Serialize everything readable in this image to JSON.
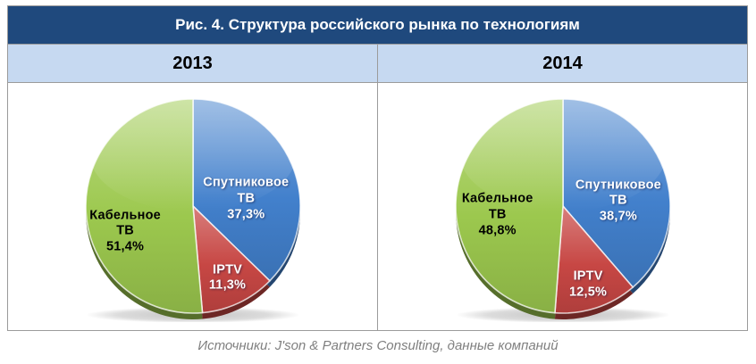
{
  "title": "Рис. 4. Структура российского рынка по технологиям",
  "source": "Источники: J'son & Partners Consulting, данные компаний",
  "colors": {
    "header_bg": "#1F497D",
    "header_text": "#FFFFFF",
    "subheader_bg": "#C6D9F1",
    "border": "#9B9B9B",
    "source_text": "#7F7F7F",
    "satellite_blue": "#4280CC",
    "iptv_red": "#C74744",
    "cable_green": "#9CC84E"
  },
  "chart_data": [
    {
      "type": "pie",
      "title": "2013",
      "start_angle_deg": 0,
      "direction": "clockwise",
      "slices": [
        {
          "id": "satellite-tv",
          "name": "Спутниковое ТВ",
          "value": 37.3,
          "value_label": "37,3%",
          "color": "#4280CC",
          "label_color": "#FFFFFF",
          "label_pos": {
            "x": 73,
            "y": 47
          }
        },
        {
          "id": "iptv",
          "name": "IPTV",
          "value": 11.3,
          "value_label": "11,3%",
          "color": "#C74744",
          "label_color": "#FFFFFF",
          "label_pos": {
            "x": 65,
            "y": 81
          }
        },
        {
          "id": "cable-tv",
          "name": "Кабельное ТВ",
          "value": 51.4,
          "value_label": "51,4%",
          "color": "#9CC84E",
          "label_color": "#000000",
          "label_pos": {
            "x": 21,
            "y": 61
          }
        }
      ]
    },
    {
      "type": "pie",
      "title": "2014",
      "start_angle_deg": 0,
      "direction": "clockwise",
      "slices": [
        {
          "id": "satellite-tv",
          "name": "Спутниковое ТВ",
          "value": 38.7,
          "value_label": "38,7%",
          "color": "#4280CC",
          "label_color": "#FFFFFF",
          "label_pos": {
            "x": 74,
            "y": 48
          }
        },
        {
          "id": "iptv",
          "name": "IPTV",
          "value": 12.5,
          "value_label": "12,5%",
          "color": "#C74744",
          "label_color": "#FFFFFF",
          "label_pos": {
            "x": 61,
            "y": 84
          }
        },
        {
          "id": "cable-tv",
          "name": "Кабельное ТВ",
          "value": 48.8,
          "value_label": "48,8%",
          "color": "#9CC84E",
          "label_color": "#000000",
          "label_pos": {
            "x": 22,
            "y": 54
          }
        }
      ]
    }
  ]
}
